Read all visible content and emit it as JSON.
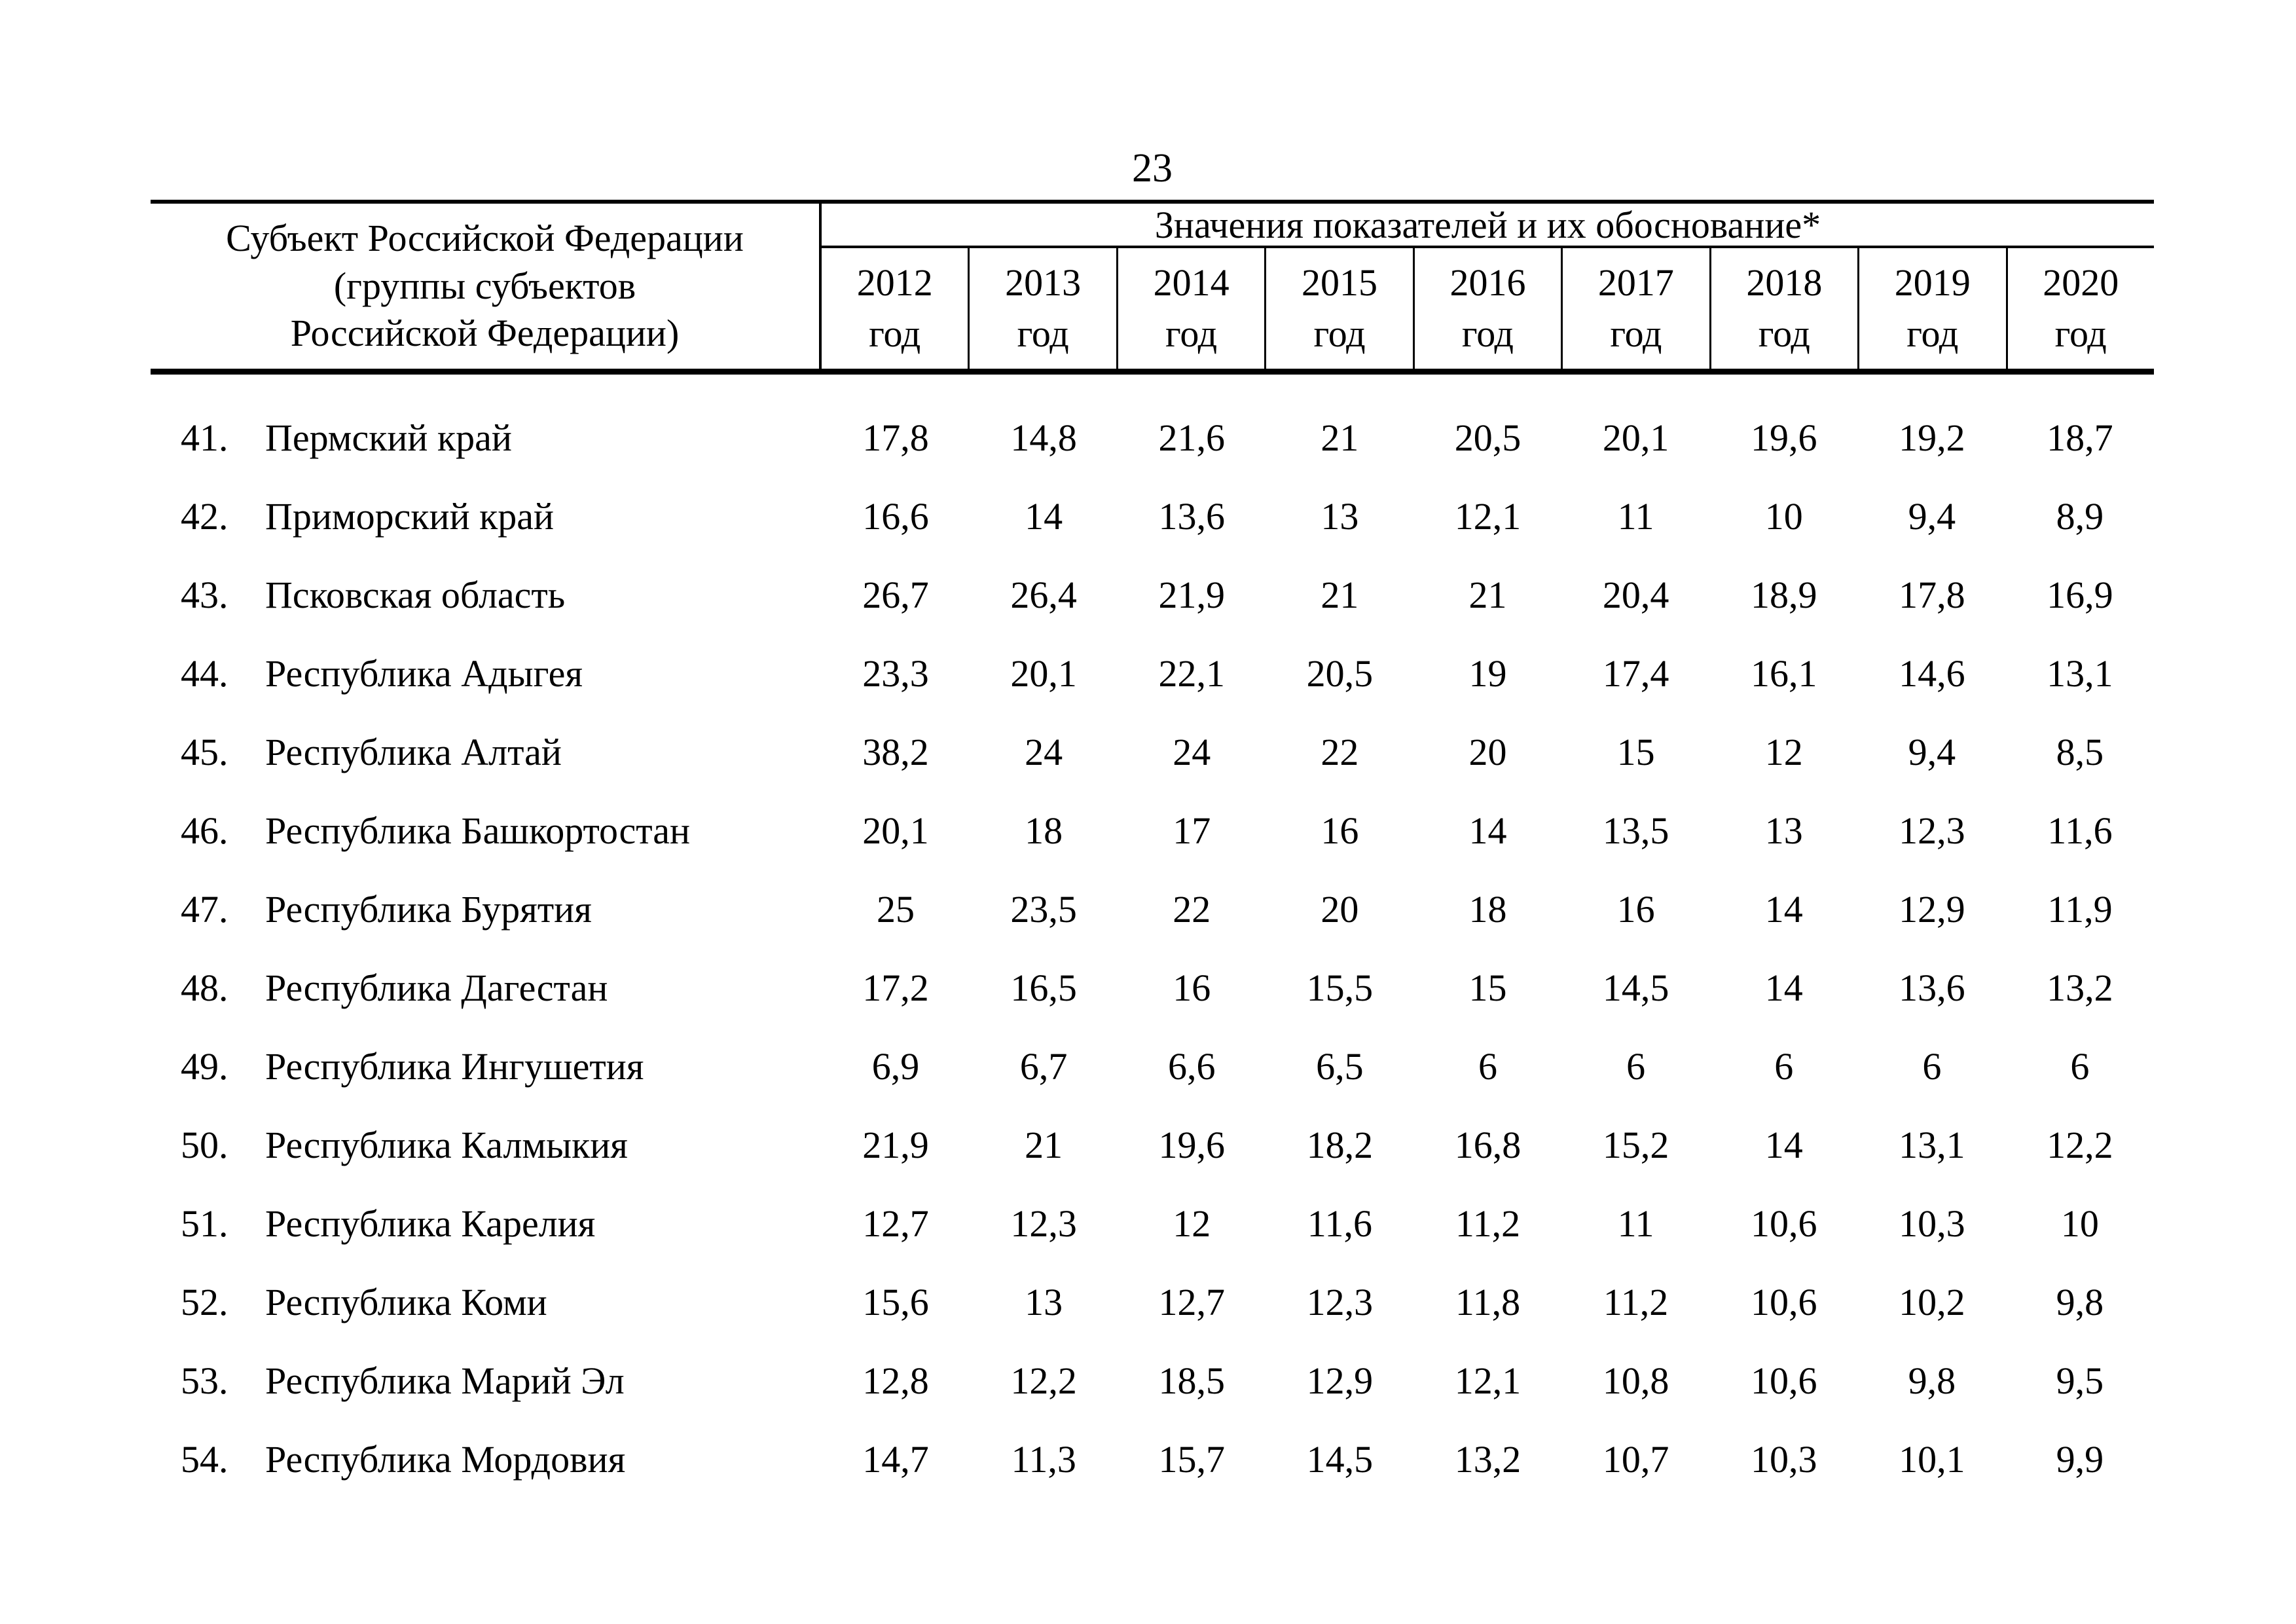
{
  "page": {
    "number": "23"
  },
  "table": {
    "subject_header_lines": [
      "Субъект Российской Федерации",
      "(группы субъектов",
      "Российской Федерации)"
    ],
    "values_header": "Значения показателей и их обоснование*",
    "year_label": "год",
    "years": [
      "2012",
      "2013",
      "2014",
      "2015",
      "2016",
      "2017",
      "2018",
      "2019",
      "2020"
    ],
    "rows": [
      {
        "num": "41.",
        "name": "Пермский край",
        "values": [
          "17,8",
          "14,8",
          "21,6",
          "21",
          "20,5",
          "20,1",
          "19,6",
          "19,2",
          "18,7"
        ]
      },
      {
        "num": "42.",
        "name": "Приморский край",
        "values": [
          "16,6",
          "14",
          "13,6",
          "13",
          "12,1",
          "11",
          "10",
          "9,4",
          "8,9"
        ]
      },
      {
        "num": "43.",
        "name": "Псковская область",
        "values": [
          "26,7",
          "26,4",
          "21,9",
          "21",
          "21",
          "20,4",
          "18,9",
          "17,8",
          "16,9"
        ]
      },
      {
        "num": "44.",
        "name": "Республика Адыгея",
        "values": [
          "23,3",
          "20,1",
          "22,1",
          "20,5",
          "19",
          "17,4",
          "16,1",
          "14,6",
          "13,1"
        ]
      },
      {
        "num": "45.",
        "name": "Республика Алтай",
        "values": [
          "38,2",
          "24",
          "24",
          "22",
          "20",
          "15",
          "12",
          "9,4",
          "8,5"
        ]
      },
      {
        "num": "46.",
        "name": "Республика Башкортостан",
        "values": [
          "20,1",
          "18",
          "17",
          "16",
          "14",
          "13,5",
          "13",
          "12,3",
          "11,6"
        ]
      },
      {
        "num": "47.",
        "name": "Республика Бурятия",
        "values": [
          "25",
          "23,5",
          "22",
          "20",
          "18",
          "16",
          "14",
          "12,9",
          "11,9"
        ]
      },
      {
        "num": "48.",
        "name": "Республика Дагестан",
        "values": [
          "17,2",
          "16,5",
          "16",
          "15,5",
          "15",
          "14,5",
          "14",
          "13,6",
          "13,2"
        ]
      },
      {
        "num": "49.",
        "name": "Республика Ингушетия",
        "values": [
          "6,9",
          "6,7",
          "6,6",
          "6,5",
          "6",
          "6",
          "6",
          "6",
          "6"
        ]
      },
      {
        "num": "50.",
        "name": "Республика Калмыкия",
        "values": [
          "21,9",
          "21",
          "19,6",
          "18,2",
          "16,8",
          "15,2",
          "14",
          "13,1",
          "12,2"
        ]
      },
      {
        "num": "51.",
        "name": "Республика Карелия",
        "values": [
          "12,7",
          "12,3",
          "12",
          "11,6",
          "11,2",
          "11",
          "10,6",
          "10,3",
          "10"
        ]
      },
      {
        "num": "52.",
        "name": "Республика Коми",
        "values": [
          "15,6",
          "13",
          "12,7",
          "12,3",
          "11,8",
          "11,2",
          "10,6",
          "10,2",
          "9,8"
        ]
      },
      {
        "num": "53.",
        "name": "Республика Марий Эл",
        "values": [
          "12,8",
          "12,2",
          "18,5",
          "12,9",
          "12,1",
          "10,8",
          "10,6",
          "9,8",
          "9,5"
        ]
      },
      {
        "num": "54.",
        "name": "Республика Мордовия",
        "values": [
          "14,7",
          "11,3",
          "15,7",
          "14,5",
          "13,2",
          "10,7",
          "10,3",
          "10,1",
          "9,9"
        ]
      }
    ]
  }
}
